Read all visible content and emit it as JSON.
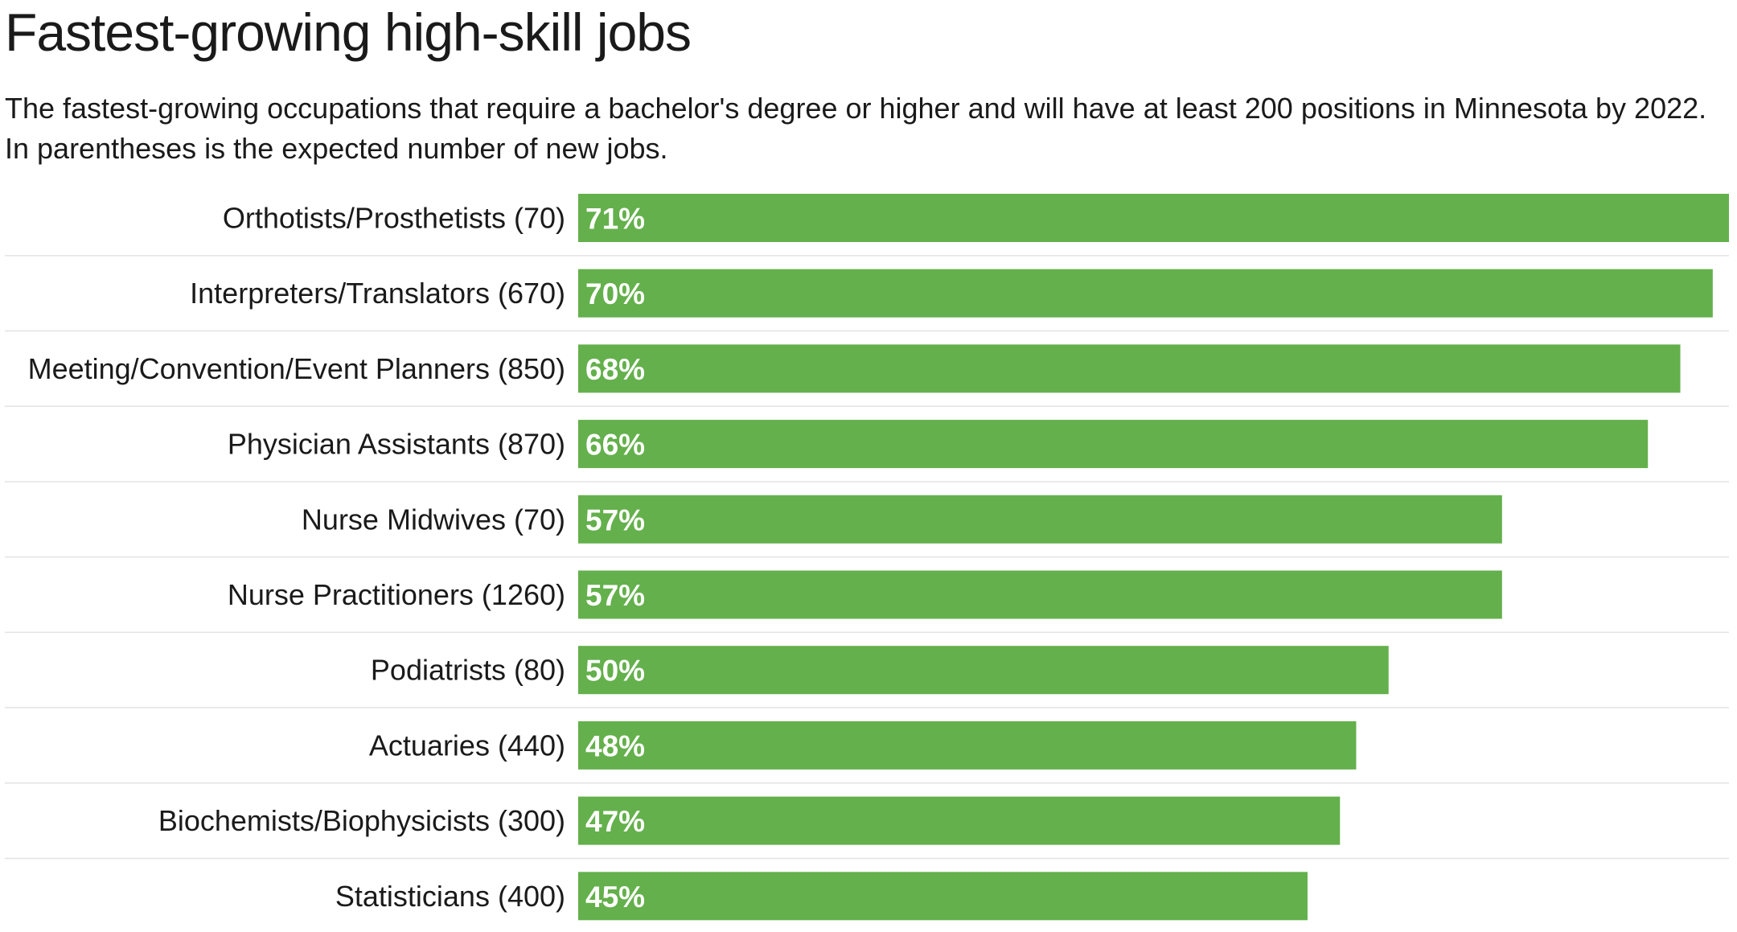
{
  "title": "Fastest-growing high-skill jobs",
  "subtitle": "The fastest-growing occupations that require a bachelor's degree or higher and will have at least 200 positions in Minnesota by 2022. In parentheses is the expected number of new jobs.",
  "colors": {
    "bar": "#64b04c",
    "divider": "#e3e3e3",
    "bar_text": "#ffffff"
  },
  "chart_data": {
    "type": "bar",
    "orientation": "horizontal",
    "title": "Fastest-growing high-skill jobs",
    "categories": [
      "Orthotists/Prosthetists (70)",
      "Interpreters/Translators (670)",
      "Meeting/Convention/Event Planners (850)",
      "Physician Assistants (870)",
      "Nurse Midwives (70)",
      "Nurse Practitioners (1260)",
      "Podiatrists (80)",
      "Actuaries (440)",
      "Biochemists/Biophysicists (300)",
      "Statisticians (400)"
    ],
    "values": [
      71,
      70,
      68,
      66,
      57,
      57,
      50,
      48,
      47,
      45
    ],
    "value_labels": [
      "71%",
      "70%",
      "68%",
      "66%",
      "57%",
      "57%",
      "50%",
      "48%",
      "47%",
      "45%"
    ],
    "xlim": [
      0,
      71
    ],
    "grid": false,
    "legend": "none"
  }
}
